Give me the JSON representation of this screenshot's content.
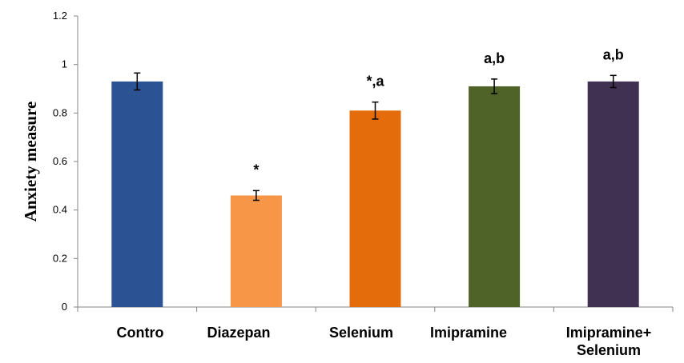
{
  "chart_data": {
    "type": "bar",
    "title": "",
    "xlabel": "",
    "ylabel": "Anxiety  measure",
    "ylim": [
      0,
      1.2
    ],
    "yticks": [
      "0",
      "0.2",
      "0.4",
      "0.6",
      "0.8",
      "1",
      "1.2"
    ],
    "grid": false,
    "legend": "none",
    "categories": [
      {
        "lines": [
          "Contro"
        ]
      },
      {
        "lines": [
          "Diazepan"
        ]
      },
      {
        "lines": [
          "Selenium"
        ]
      },
      {
        "lines": [
          "Imipramine"
        ]
      },
      {
        "lines": [
          "Imipramine+",
          "Selenium"
        ]
      }
    ],
    "values": [
      0.93,
      0.46,
      0.81,
      0.91,
      0.93
    ],
    "errors": [
      0.035,
      0.02,
      0.035,
      0.03,
      0.025
    ],
    "annotations": [
      "",
      "*",
      "*,a",
      "a,b",
      "a,b"
    ],
    "colors": [
      "#2b5293",
      "#f79646",
      "#e46c0a",
      "#4f6228",
      "#403152"
    ]
  }
}
